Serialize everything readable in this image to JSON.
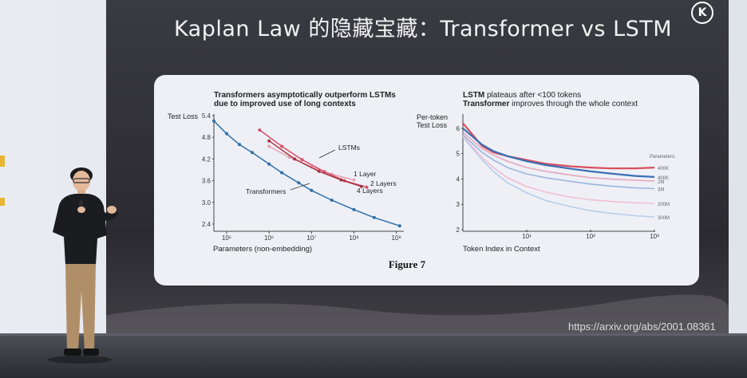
{
  "slide": {
    "title": "Kaplan Law 的隐藏宝藏：Transformer vs LSTM",
    "logo_letter": "K",
    "source_url": "https://arxiv.org/abs/2001.08361"
  },
  "figure": {
    "caption": "Figure 7",
    "left_title_line1": "Transformers asymptotically outperform LSTMs",
    "left_title_line2": "due to improved use of long contexts",
    "right_title_line1_bold": "LSTM",
    "right_title_line1_rest": " plateaus after <100 tokens",
    "right_title_line2_bold": "Transformer",
    "right_title_line2_rest": " improves through the whole context"
  },
  "chart_data": [
    {
      "type": "line",
      "xlabel": "Parameters (non-embedding)",
      "ylabel": "Test Loss",
      "xscale": "log",
      "xlim": [
        50000,
        1500000000
      ],
      "ylim": [
        2.2,
        5.4
      ],
      "x_ticks": [
        "10⁵",
        "10⁶",
        "10⁷",
        "10⁸",
        "10⁹"
      ],
      "y_ticks": [
        "5.4",
        "4.8",
        "4.2",
        "3.6",
        "3.0",
        "2.4"
      ],
      "annotations": [
        "LSTMs",
        "Transformers",
        "1 Layer",
        "2 Layers",
        "4 Layers"
      ],
      "series": [
        {
          "name": "Transformers",
          "color": "#2e6fa8",
          "x": [
            50000,
            100000,
            200000,
            400000,
            1000000,
            2000000,
            5000000,
            10000000,
            30000000,
            100000000,
            300000000,
            1200000000
          ],
          "y": [
            5.25,
            4.9,
            4.6,
            4.38,
            4.06,
            3.82,
            3.54,
            3.33,
            3.06,
            2.8,
            2.58,
            2.35
          ]
        },
        {
          "name": "1 Layer",
          "color": "#e8a3b4",
          "x": [
            1000000,
            3000000,
            10000000,
            30000000,
            100000000
          ],
          "y": [
            4.55,
            4.25,
            3.98,
            3.78,
            3.62
          ]
        },
        {
          "name": "2 Layers",
          "color": "#d6506a",
          "x": [
            600000,
            2000000,
            6000000,
            20000000,
            60000000,
            200000000
          ],
          "y": [
            5.0,
            4.55,
            4.18,
            3.85,
            3.6,
            3.42
          ]
        },
        {
          "name": "4 Layers",
          "color": "#a8323f",
          "x": [
            1000000,
            4000000,
            15000000,
            50000000,
            150000000
          ],
          "y": [
            4.7,
            4.2,
            3.86,
            3.62,
            3.44
          ]
        }
      ]
    },
    {
      "type": "line",
      "xlabel": "Token Index in Context",
      "ylabel": "Per-token Test Loss",
      "xscale": "log",
      "xlim": [
        1,
        1000
      ],
      "ylim": [
        2,
        6.5
      ],
      "x_ticks": [
        "10¹",
        "10²",
        "10³"
      ],
      "y_ticks": [
        "6",
        "5",
        "4",
        "3",
        "2"
      ],
      "legend_title": "Parameters:",
      "legend_placement": "right",
      "series": [
        {
          "name": "400K",
          "color": "#d9505e",
          "x": [
            1,
            2,
            3,
            5,
            10,
            20,
            50,
            100,
            200,
            500,
            1000
          ],
          "y": [
            6.2,
            5.3,
            5.05,
            4.9,
            4.75,
            4.6,
            4.5,
            4.45,
            4.42,
            4.42,
            4.45
          ]
        },
        {
          "name": "400K",
          "color": "#3b6fb5",
          "x": [
            1,
            2,
            3,
            5,
            10,
            20,
            50,
            100,
            200,
            500,
            1000
          ],
          "y": [
            6.0,
            5.35,
            5.1,
            4.9,
            4.7,
            4.55,
            4.4,
            4.3,
            4.22,
            4.12,
            4.08
          ]
        },
        {
          "name": "2M",
          "color": "#e7a6be",
          "x": [
            1,
            2,
            3,
            5,
            10,
            20,
            50,
            100,
            200,
            500,
            1000
          ],
          "y": [
            5.85,
            5.2,
            4.95,
            4.7,
            4.45,
            4.3,
            4.15,
            4.05,
            4.0,
            3.95,
            3.92
          ]
        },
        {
          "name": "3M",
          "color": "#9ab7dd",
          "x": [
            1,
            2,
            3,
            5,
            10,
            20,
            50,
            100,
            200,
            500,
            1000
          ],
          "y": [
            5.75,
            5.05,
            4.75,
            4.45,
            4.2,
            4.05,
            3.9,
            3.8,
            3.72,
            3.65,
            3.62
          ]
        },
        {
          "name": "200M",
          "color": "#f1bfd0",
          "x": [
            1,
            2,
            3,
            5,
            10,
            20,
            50,
            100,
            200,
            500,
            1000
          ],
          "y": [
            5.7,
            4.85,
            4.45,
            4.05,
            3.7,
            3.48,
            3.28,
            3.18,
            3.12,
            3.06,
            3.04
          ]
        },
        {
          "name": "300M",
          "color": "#b9cdea",
          "x": [
            1,
            2,
            3,
            5,
            10,
            20,
            50,
            100,
            200,
            500,
            1000
          ],
          "y": [
            5.65,
            4.75,
            4.3,
            3.85,
            3.45,
            3.15,
            2.9,
            2.75,
            2.65,
            2.55,
            2.5
          ]
        }
      ]
    }
  ]
}
